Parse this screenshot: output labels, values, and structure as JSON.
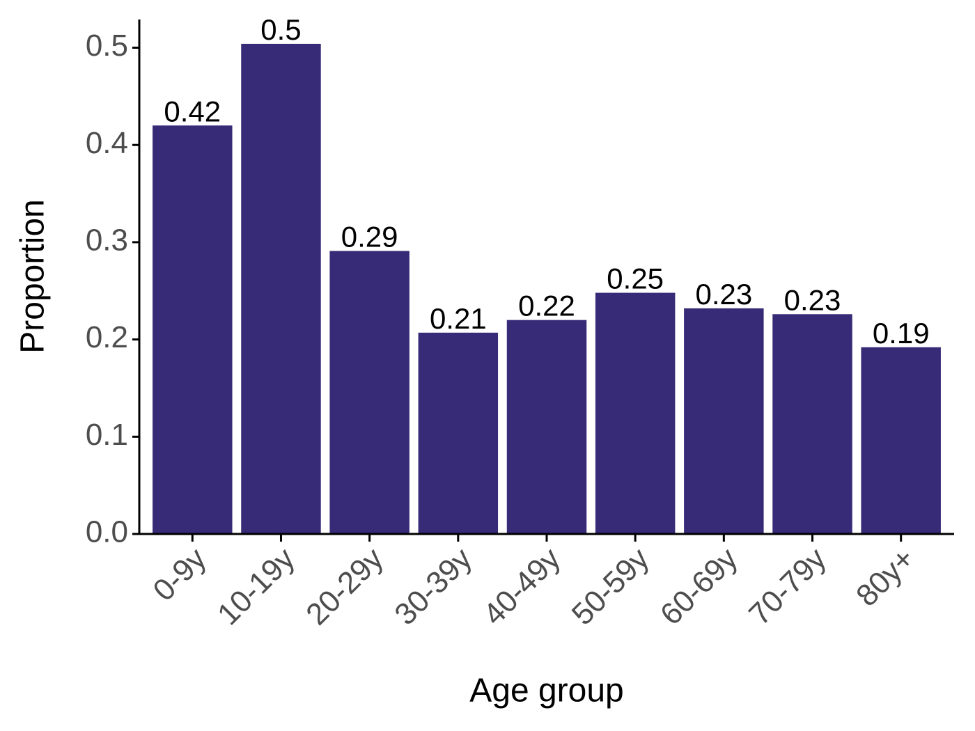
{
  "chart_data": {
    "type": "bar",
    "x_label": "Age group",
    "y_label": "Proportion",
    "categories": [
      "0-9y",
      "10-19y",
      "20-29y",
      "30-39y",
      "40-49y",
      "50-59y",
      "60-69y",
      "70-79y",
      "80y+"
    ],
    "values": [
      0.42,
      0.504,
      0.291,
      0.207,
      0.22,
      0.248,
      0.232,
      0.226,
      0.192
    ],
    "value_labels": [
      "0.42",
      "0.5",
      "0.29",
      "0.21",
      "0.22",
      "0.25",
      "0.23",
      "0.23",
      "0.19"
    ],
    "color": "#372a77",
    "ylim": [
      0,
      0.529
    ],
    "yticks": [
      {
        "value": 0,
        "label": "0.0"
      },
      0.1,
      0.2,
      0.3,
      0.4,
      0.5
    ]
  }
}
